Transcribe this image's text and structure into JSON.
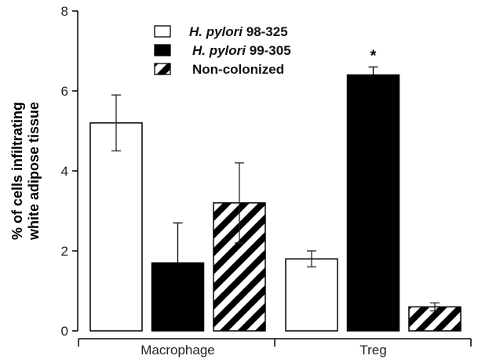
{
  "chart_data": {
    "type": "bar",
    "title": "",
    "xlabel": "",
    "ylabel": [
      "% of cells infiltrating",
      "white adipose tissue"
    ],
    "ylim": [
      0,
      8
    ],
    "yticks": [
      "0",
      "2",
      "4",
      "6",
      "8"
    ],
    "categories": [
      "Macrophage",
      "Treg"
    ],
    "series": [
      {
        "name_italic": "H. pylori",
        "name_rest": " 98-325",
        "fill": "white",
        "values": [
          5.2,
          1.8
        ],
        "err_high": [
          5.9,
          2.0
        ],
        "err_low": [
          4.5,
          1.6
        ]
      },
      {
        "name_italic": "H. pylori",
        "name_rest": " 99-305",
        "fill": "black",
        "values": [
          1.7,
          6.4
        ],
        "err_high": [
          2.7,
          6.6
        ],
        "err_low": [
          1.7,
          6.4
        ]
      },
      {
        "name_italic": "",
        "name_rest": "Non-colonized",
        "fill": "hatch",
        "values": [
          3.2,
          0.6
        ],
        "err_high": [
          4.2,
          0.7
        ],
        "err_low": [
          2.2,
          0.5
        ]
      }
    ],
    "annotations": [
      {
        "text": "*",
        "category": "Treg",
        "series": 1
      }
    ],
    "legend": "top-center"
  }
}
